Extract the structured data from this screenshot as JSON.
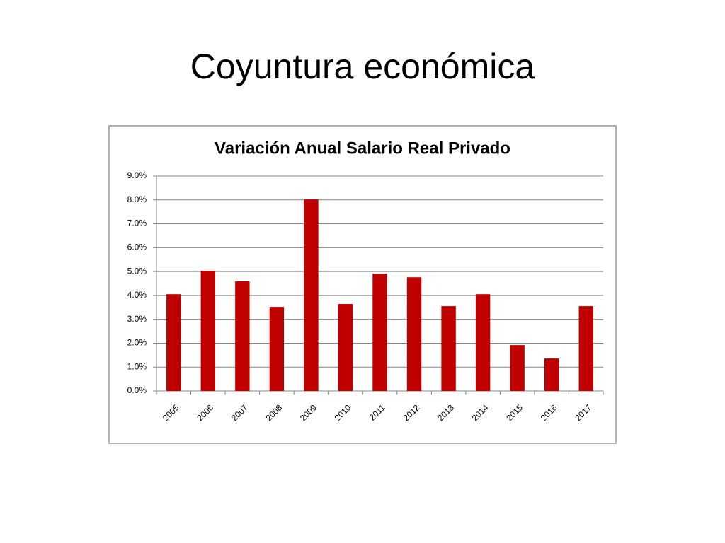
{
  "title": "Coyuntura económica",
  "chart_data": {
    "type": "bar",
    "title": "Variación Anual Salario Real Privado",
    "categories": [
      "2005",
      "2006",
      "2007",
      "2008",
      "2009",
      "2010",
      "2011",
      "2012",
      "2013",
      "2014",
      "2015",
      "2016",
      "2017"
    ],
    "values": [
      4.05,
      5.03,
      4.59,
      3.52,
      8.02,
      3.64,
      4.91,
      4.76,
      3.55,
      4.05,
      1.92,
      1.36,
      3.55
    ],
    "color": "#c00000",
    "ylim": [
      0,
      9
    ],
    "yticks": [
      {
        "value": 0,
        "label": "0.0%"
      },
      {
        "value": 1,
        "label": "1.0%"
      },
      {
        "value": 2,
        "label": "2.0%"
      },
      {
        "value": 3,
        "label": "3.0%"
      },
      {
        "value": 4,
        "label": "4.0%"
      },
      {
        "value": 5,
        "label": "5.0%"
      },
      {
        "value": 6,
        "label": "6.0%"
      },
      {
        "value": 7,
        "label": "7.0%"
      },
      {
        "value": 8,
        "label": "8.0%"
      },
      {
        "value": 9,
        "label": "9.0%"
      }
    ],
    "grid": true
  }
}
